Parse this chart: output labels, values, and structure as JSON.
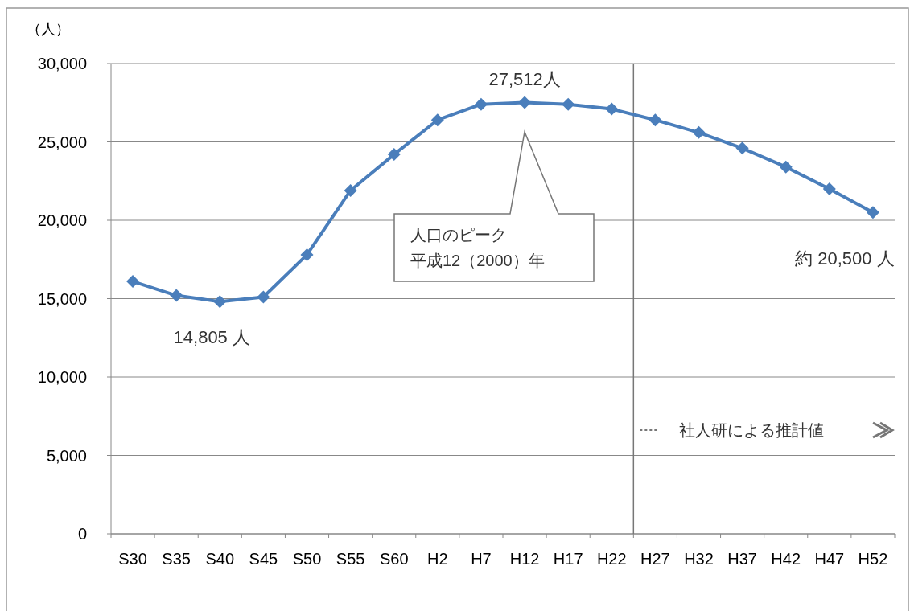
{
  "chart_data": {
    "type": "line",
    "ylabel": "（人）",
    "categories": [
      "S30",
      "S35",
      "S40",
      "S45",
      "S50",
      "S55",
      "S60",
      "H2",
      "H7",
      "H12",
      "H17",
      "H22",
      "H27",
      "H32",
      "H37",
      "H42",
      "H47",
      "H52"
    ],
    "series": [
      {
        "color": "#4a7ebb",
        "values": [
          16100,
          15200,
          14805,
          15100,
          17800,
          21900,
          24200,
          26400,
          27400,
          27512,
          27400,
          27100,
          26400,
          25600,
          24600,
          23400,
          22000,
          20500
        ],
        "value_labels": [
          null,
          null,
          "14,805 人",
          null,
          null,
          null,
          null,
          null,
          null,
          "27,512人",
          null,
          null,
          null,
          null,
          null,
          null,
          null,
          "約 20,500 人"
        ]
      }
    ],
    "ylim": [
      0,
      30000
    ],
    "yticks": [
      {
        "value": 0,
        "label": "0"
      },
      {
        "value": 5000,
        "label": "5,000"
      },
      {
        "value": 10000,
        "label": "10,000"
      },
      {
        "value": 15000,
        "label": "15,000"
      },
      {
        "value": 20000,
        "label": "20,000"
      },
      {
        "value": 25000,
        "label": "25,000"
      },
      {
        "value": 30000,
        "label": "30,000"
      }
    ],
    "grid": "y",
    "marker": "diamond",
    "line_style": "solid",
    "ref_lines": [
      {
        "axis": "x",
        "value": "H27",
        "label": "社人研による推計値"
      }
    ],
    "annotations": [
      "人口のピーク",
      "平成12（2000）年"
    ]
  }
}
